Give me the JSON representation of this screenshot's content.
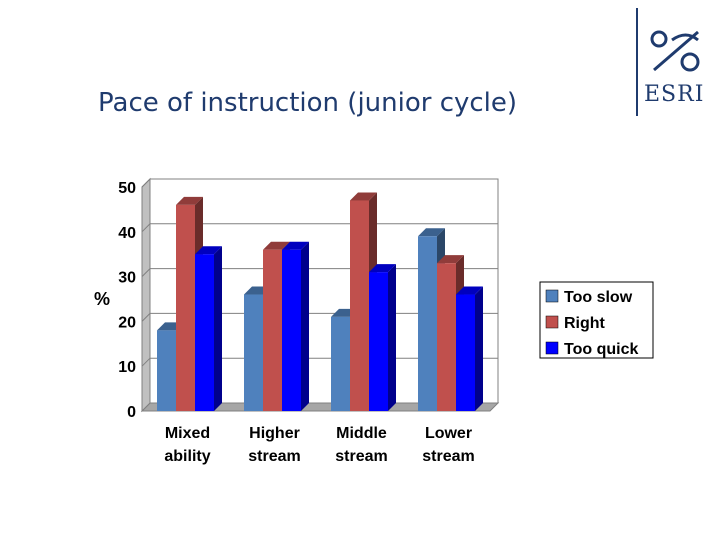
{
  "slide": {
    "title": "Pace of instruction (junior cycle)",
    "logo": {
      "brand": "ESRI",
      "icon": "esri-monogram-logo"
    }
  },
  "colors": {
    "title": "#1f3b6e",
    "too_slow": "#4f81bd",
    "right": "#c0504d",
    "too_quick": "#0000ff"
  },
  "chart_data": {
    "type": "bar",
    "title": "",
    "ylabel": "%",
    "xlabel": "",
    "ylim": [
      0,
      50
    ],
    "yticks": [
      0,
      10,
      20,
      30,
      40,
      50
    ],
    "grid": true,
    "three_d": true,
    "legend_position": "right",
    "categories": [
      [
        "Mixed",
        "ability"
      ],
      [
        "Higher",
        "stream"
      ],
      [
        "Middle",
        "stream"
      ],
      [
        "Lower",
        "stream"
      ]
    ],
    "series": [
      {
        "name": "Too slow",
        "color": "#4f81bd",
        "values": [
          18,
          26,
          21,
          39
        ]
      },
      {
        "name": "Right",
        "color": "#c0504d",
        "values": [
          46,
          36,
          47,
          33
        ]
      },
      {
        "name": "Too quick",
        "color": "#0000ff",
        "values": [
          35,
          36,
          31,
          26
        ]
      }
    ]
  }
}
